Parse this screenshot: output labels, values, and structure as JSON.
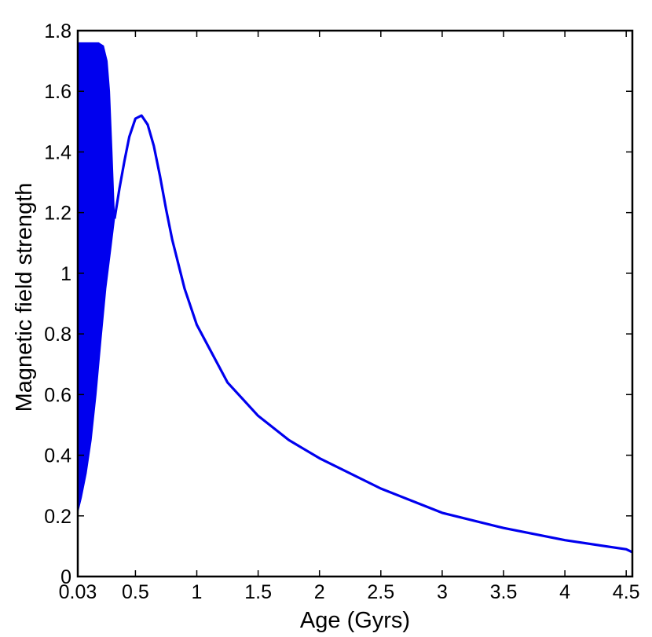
{
  "chart_data": {
    "type": "line",
    "xlabel": "Age (Gyrs)",
    "ylabel": "Magnetic field strength",
    "xlim": [
      0.03,
      4.55
    ],
    "ylim": [
      0,
      1.8
    ],
    "x_ticks": [
      0.03,
      0.5,
      1,
      1.5,
      2,
      2.5,
      3,
      3.5,
      4,
      4.5
    ],
    "x_tick_labels": [
      "0.03",
      "0.5",
      "1",
      "1.5",
      "2",
      "2.5",
      "3",
      "3.5",
      "4",
      "4.5"
    ],
    "y_ticks": [
      0,
      0.2,
      0.4,
      0.6,
      0.8,
      1,
      1.2,
      1.4,
      1.6,
      1.8
    ],
    "y_tick_labels": [
      "0",
      "0.2",
      "0.4",
      "0.6",
      "0.8",
      "1",
      "1.2",
      "1.4",
      "1.6",
      "1.8"
    ],
    "grid": false,
    "legend": "none",
    "color": "#0000ee",
    "envelope": {
      "upper": [
        [
          0.03,
          1.76
        ],
        [
          0.1,
          1.76
        ],
        [
          0.2,
          1.76
        ],
        [
          0.24,
          1.75
        ],
        [
          0.27,
          1.7
        ],
        [
          0.29,
          1.6
        ],
        [
          0.31,
          1.4
        ],
        [
          0.33,
          1.18
        ]
      ],
      "lower": [
        [
          0.03,
          0.21
        ],
        [
          0.06,
          0.26
        ],
        [
          0.1,
          0.34
        ],
        [
          0.14,
          0.45
        ],
        [
          0.18,
          0.6
        ],
        [
          0.22,
          0.78
        ],
        [
          0.26,
          0.95
        ],
        [
          0.3,
          1.08
        ],
        [
          0.33,
          1.18
        ]
      ]
    },
    "series": [
      {
        "values": [
          [
            0.33,
            1.18
          ],
          [
            0.37,
            1.28
          ],
          [
            0.41,
            1.37
          ],
          [
            0.45,
            1.45
          ],
          [
            0.5,
            1.51
          ],
          [
            0.55,
            1.52
          ],
          [
            0.6,
            1.49
          ],
          [
            0.65,
            1.42
          ],
          [
            0.7,
            1.32
          ],
          [
            0.75,
            1.21
          ],
          [
            0.8,
            1.11
          ],
          [
            0.9,
            0.95
          ],
          [
            1.0,
            0.83
          ],
          [
            1.25,
            0.64
          ],
          [
            1.5,
            0.53
          ],
          [
            1.75,
            0.45
          ],
          [
            2.0,
            0.39
          ],
          [
            2.5,
            0.29
          ],
          [
            3.0,
            0.21
          ],
          [
            3.5,
            0.16
          ],
          [
            4.0,
            0.12
          ],
          [
            4.5,
            0.09
          ],
          [
            4.55,
            0.08
          ]
        ]
      }
    ]
  }
}
